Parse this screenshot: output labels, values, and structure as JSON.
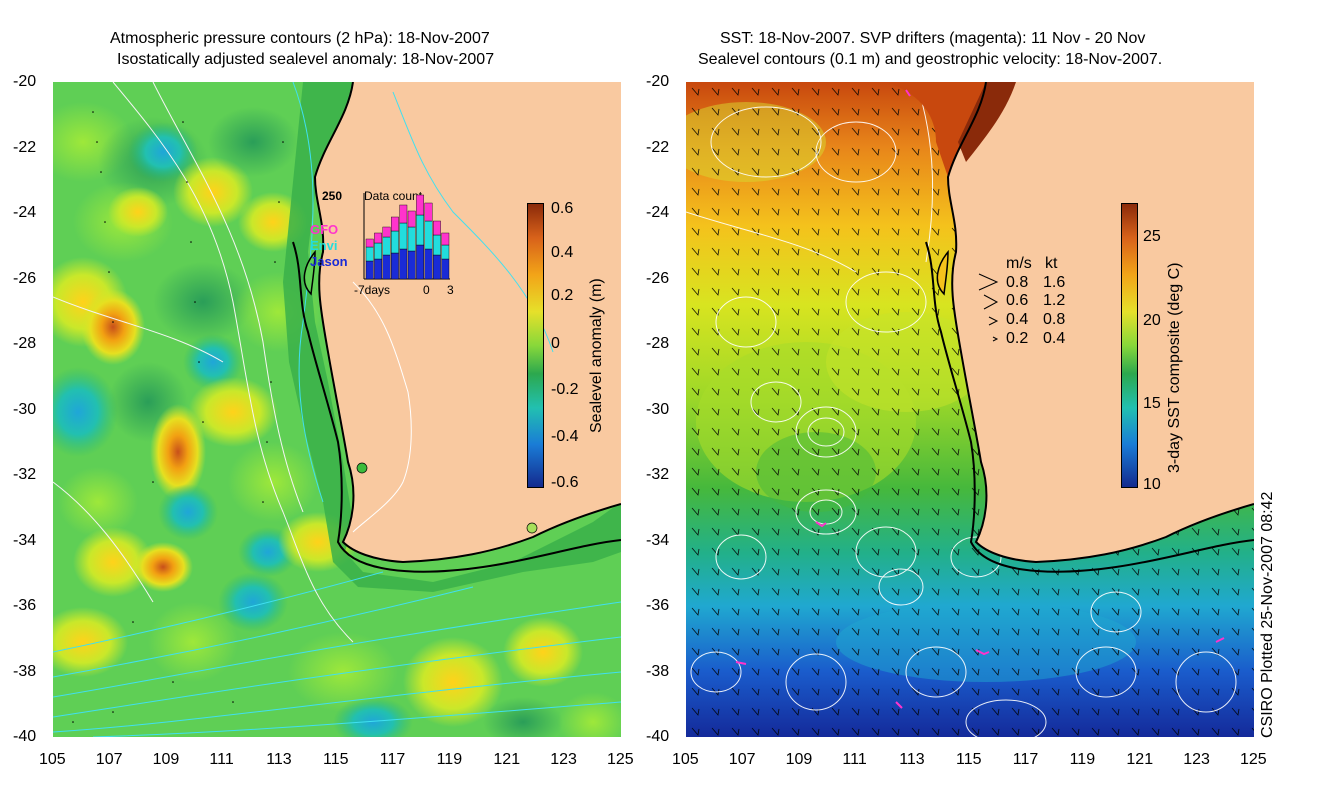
{
  "left": {
    "title_line1": "Atmospheric pressure contours (2 hPa): 18-Nov-2007",
    "title_line2": "Isostatically adjusted sealevel anomaly: 18-Nov-2007",
    "colorbar_label": "Sealevel anomaly (m)",
    "colorbar_ticks": [
      "0.6",
      "0.4",
      "0.2",
      "0",
      "-0.2",
      "-0.4",
      "-0.6"
    ],
    "inset": {
      "title": "Data count",
      "ymax_label": "250",
      "x_labels": [
        "-7days",
        "0",
        "3"
      ],
      "legend": [
        {
          "name": "GFO",
          "color": "#ff33cc"
        },
        {
          "name": "Envi",
          "color": "#22dddd"
        },
        {
          "name": "Jason",
          "color": "#1a2bd6"
        }
      ]
    }
  },
  "right": {
    "title_line1": "SST: 18-Nov-2007. SVP drifters (magenta): 11 Nov - 20 Nov",
    "title_line2": "Sealevel contours (0.1 m) and geostrophic velocity: 18-Nov-2007.",
    "colorbar_label": "3-day SST composite (deg C)",
    "colorbar_ticks": [
      "25",
      "20",
      "15",
      "10"
    ],
    "velocity_legend": {
      "header_ms": "m/s",
      "header_kt": "kt",
      "rows": [
        {
          "ms": "0.8",
          "kt": "1.6"
        },
        {
          "ms": "0.6",
          "kt": "1.2"
        },
        {
          "ms": "0.4",
          "kt": "0.8"
        },
        {
          "ms": "0.2",
          "kt": "0.4"
        }
      ]
    }
  },
  "axes": {
    "lat_labels": [
      "-20",
      "-22",
      "-24",
      "-26",
      "-28",
      "-30",
      "-32",
      "-34",
      "-36",
      "-38",
      "-40"
    ],
    "lon_labels": [
      "105",
      "107",
      "109",
      "111",
      "113",
      "115",
      "117",
      "119",
      "121",
      "123",
      "125"
    ]
  },
  "credit": "CSIRO Plotted 25-Nov-2007 08:42",
  "colors": {
    "land": "#f9c9a0",
    "coast": "#000000",
    "pressure_contour": "#40e0f0",
    "sealevel_contour": "#ffffff"
  }
}
